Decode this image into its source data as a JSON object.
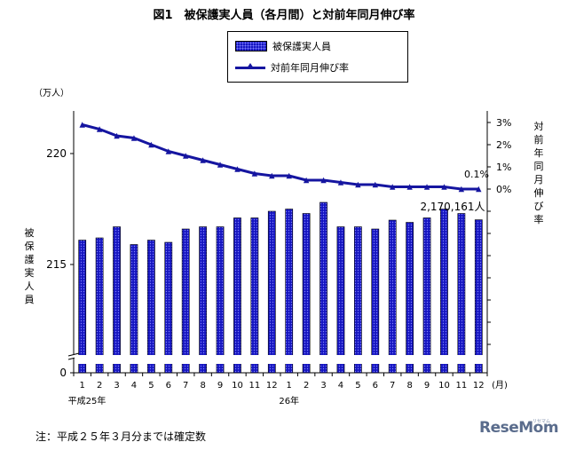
{
  "chart_data": {
    "type": "bar",
    "title": "図1　被保護実人員（各月間）と対前年同月伸び率",
    "categories": [
      "1",
      "2",
      "3",
      "4",
      "5",
      "6",
      "7",
      "8",
      "9",
      "10",
      "11",
      "12",
      "1",
      "2",
      "3",
      "4",
      "5",
      "6",
      "7",
      "8",
      "9",
      "10",
      "11",
      "12"
    ],
    "x_group_labels": [
      "平成25年",
      "26年"
    ],
    "x_unit": "(月)",
    "bar_series": {
      "name": "被保護実人員",
      "unit": "万人",
      "values": [
        216.1,
        216.2,
        216.7,
        215.9,
        216.1,
        216.0,
        216.6,
        216.7,
        216.7,
        217.1,
        217.1,
        217.4,
        217.5,
        217.3,
        217.8,
        216.7,
        216.7,
        216.6,
        217.0,
        216.9,
        217.1,
        217.5,
        217.3,
        217.0161
      ],
      "annotation": "2,170,161人"
    },
    "line_series": {
      "name": "対前年同月伸び率",
      "unit": "%",
      "values": [
        2.9,
        2.7,
        2.4,
        2.3,
        2.0,
        1.7,
        1.5,
        1.3,
        1.1,
        0.9,
        0.7,
        0.6,
        0.6,
        0.4,
        0.4,
        0.3,
        0.2,
        0.2,
        0.1,
        0.1,
        0.1,
        0.1,
        0.0,
        0.0
      ],
      "annotation": "0.1%"
    },
    "left_axis": {
      "label": "被保護実人員",
      "unit_label": "（万人）",
      "ticks": [
        "215",
        "220",
        "0"
      ]
    },
    "right_axis": {
      "label": "対前年同月伸び率",
      "ticks": [
        "3%",
        "2%",
        "1%",
        "0%"
      ]
    },
    "colors": {
      "bar": "#1515c0",
      "bar_dots": "#7f7fff",
      "line": "#1515a0"
    }
  },
  "legend": {
    "bar_label": "被保護実人員",
    "line_label": "対前年同月伸び率"
  },
  "note": "注：平成２５年３月分までは確定数",
  "logo": {
    "text": "ReseMom",
    "sub": "リセマム"
  }
}
